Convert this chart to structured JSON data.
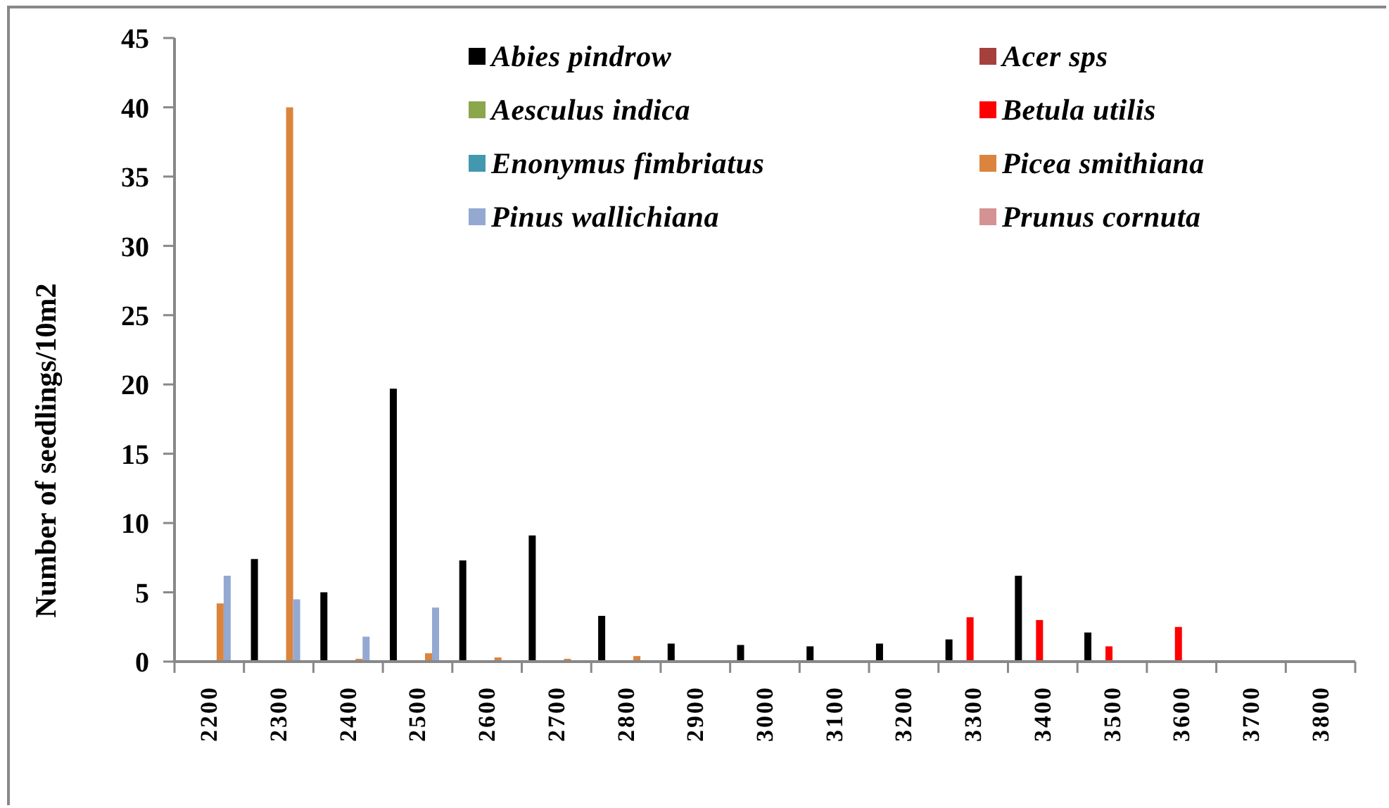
{
  "chart_data": {
    "type": "bar",
    "ylabel": "Number of seedlings/10m2",
    "categories": [
      "2200",
      "2300",
      "2400",
      "2500",
      "2600",
      "2700",
      "2800",
      "2900",
      "3000",
      "3100",
      "3200",
      "3300",
      "3400",
      "3500",
      "3600",
      "3700",
      "3800"
    ],
    "series": [
      {
        "name": "Abies pindrow",
        "color": "#000000",
        "values": [
          0,
          7.4,
          5,
          19.7,
          7.3,
          9.1,
          3.3,
          1.3,
          1.2,
          1.1,
          1.3,
          1.6,
          6.2,
          2.1,
          0,
          0,
          0
        ]
      },
      {
        "name": "Acer sps",
        "color": "#a5403d",
        "values": [
          0,
          0,
          0,
          0,
          0,
          0,
          0,
          0,
          0,
          0,
          0,
          0,
          0,
          0,
          0,
          0,
          0
        ]
      },
      {
        "name": "Aesculus indica",
        "color": "#8ba64b",
        "values": [
          0,
          0,
          0,
          0,
          0,
          0,
          0,
          0,
          0,
          0,
          0,
          0,
          0,
          0,
          0,
          0,
          0
        ]
      },
      {
        "name": "Betula utilis",
        "color": "#ff0000",
        "values": [
          0,
          0,
          0,
          0,
          0,
          0,
          0,
          0,
          0,
          0,
          0,
          3.2,
          3.0,
          1.1,
          2.5,
          0,
          0
        ]
      },
      {
        "name": "Enonymus fimbriatus",
        "color": "#4298af",
        "values": [
          0,
          0,
          0,
          0,
          0,
          0,
          0,
          0,
          0,
          0,
          0,
          0,
          0,
          0,
          0,
          0,
          0
        ]
      },
      {
        "name": "Picea smithiana",
        "color": "#db843d",
        "values": [
          4.2,
          40,
          0.2,
          0.6,
          0.3,
          0.2,
          0.4,
          0,
          0,
          0,
          0,
          0,
          0,
          0,
          0,
          0,
          0
        ]
      },
      {
        "name": "Pinus wallichiana",
        "color": "#93a9d1",
        "values": [
          6.2,
          4.5,
          1.8,
          3.9,
          0,
          0,
          0,
          0,
          0,
          0,
          0,
          0,
          0,
          0,
          0,
          0,
          0
        ]
      },
      {
        "name": "Prunus cornuta",
        "color": "#d59292",
        "values": [
          0,
          0,
          0,
          0,
          0,
          0,
          0,
          0,
          0,
          0,
          0,
          0,
          0,
          0,
          0,
          0,
          0
        ]
      }
    ],
    "ylim": [
      0,
      45
    ],
    "yticks": [
      0,
      5,
      10,
      15,
      20,
      25,
      30,
      35,
      40,
      45
    ],
    "legend": "top"
  }
}
